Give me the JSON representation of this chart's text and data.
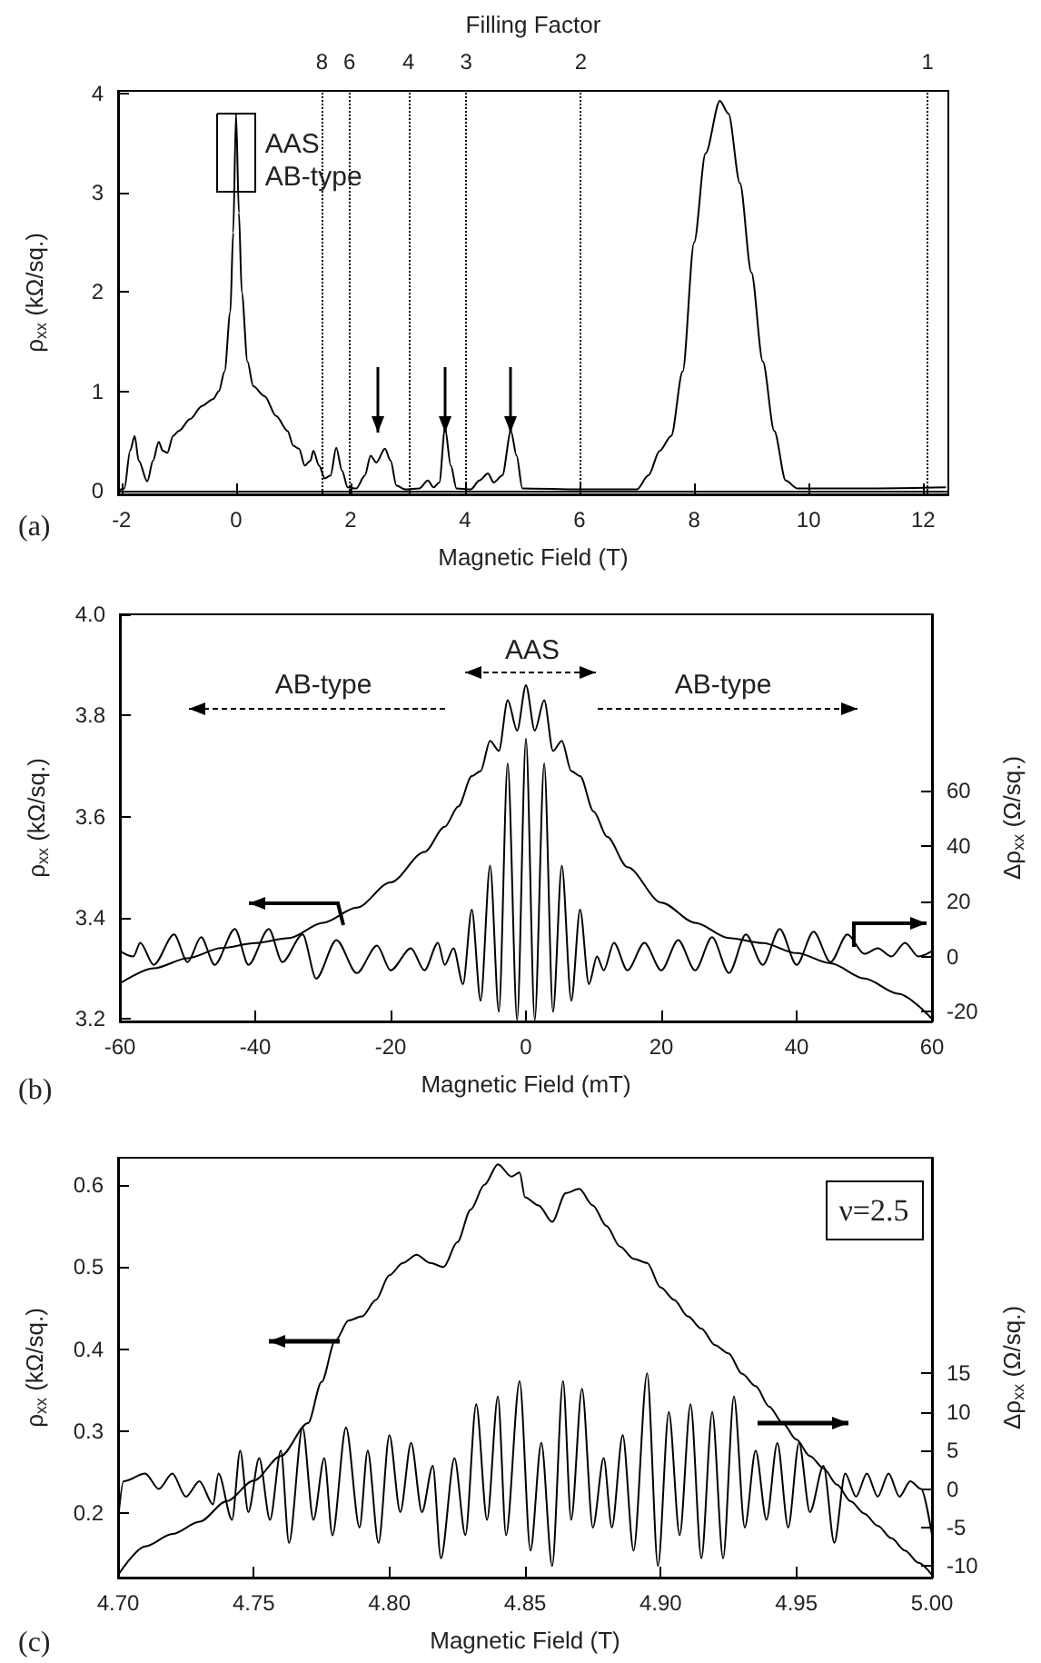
{
  "chart_data": [
    {
      "type": "line",
      "x2label": "Filling Factor",
      "xlabel": "Magnetic Field (T)",
      "ylabel": "ρ$_{xx}$ (kΩ/sq.)",
      "x": [
        -2.05,
        -1.95,
        -1.85,
        -1.77,
        -1.7,
        -1.55,
        -1.45,
        -1.35,
        -1.28,
        -1.2,
        -1.1,
        -1.0,
        -0.8,
        -0.6,
        -0.4,
        -0.3,
        -0.2,
        -0.1,
        -0.05,
        0,
        0.05,
        0.1,
        0.2,
        0.3,
        0.5,
        0.7,
        0.9,
        1.0,
        1.1,
        1.2,
        1.3,
        1.35,
        1.45,
        1.55,
        1.65,
        1.75,
        1.85,
        1.95,
        2.1,
        2.25,
        2.35,
        2.45,
        2.6,
        2.7,
        2.8,
        2.95,
        3.2,
        3.35,
        3.45,
        3.55,
        3.65,
        3.75,
        3.85,
        4.1,
        4.25,
        4.4,
        4.5,
        4.65,
        4.8,
        4.9,
        5.0,
        6.0,
        7.0,
        7.2,
        7.4,
        7.6,
        7.8,
        8.0,
        8.2,
        8.45,
        8.6,
        8.8,
        9.0,
        9.2,
        9.4,
        9.6,
        9.8,
        11.0,
        12.4
      ],
      "values": [
        0,
        0.02,
        0.4,
        0.55,
        0.3,
        0.09,
        0.3,
        0.49,
        0.4,
        0.38,
        0.55,
        0.6,
        0.72,
        0.85,
        0.92,
        1.0,
        1.2,
        1.8,
        2.6,
        3.8,
        2.8,
        2.0,
        1.3,
        1.05,
        0.95,
        0.75,
        0.6,
        0.45,
        0.42,
        0.25,
        0.3,
        0.4,
        0.25,
        0.12,
        0.15,
        0.43,
        0.2,
        0.03,
        0.02,
        0.15,
        0.35,
        0.28,
        0.42,
        0.3,
        0.05,
        0.01,
        0.02,
        0.1,
        0.03,
        0.08,
        0.63,
        0.25,
        0.02,
        0.01,
        0.1,
        0.17,
        0.08,
        0.15,
        0.6,
        0.35,
        0.02,
        0.01,
        0.01,
        0.15,
        0.4,
        0.55,
        1.2,
        2.5,
        3.4,
        3.93,
        3.8,
        3.1,
        2.2,
        1.3,
        0.6,
        0.1,
        0.02,
        0.02,
        0.03
      ],
      "color": "#000000",
      "xlim": [
        -2.06,
        12.44
      ],
      "ylim": [
        -0.04,
        4.03
      ],
      "xticks": [
        -2,
        0,
        2,
        4,
        6,
        8,
        10,
        12
      ],
      "yticks": [
        0,
        1,
        2,
        3,
        4
      ],
      "ref_lines": [
        {
          "axis": "x",
          "value": 1.5,
          "line_style": "dotted"
        },
        {
          "axis": "x",
          "value": 1.98,
          "line_style": "dotted"
        },
        {
          "axis": "x",
          "value": 3.01,
          "line_style": "dotted"
        },
        {
          "axis": "x",
          "value": 4.02,
          "line_style": "dotted"
        },
        {
          "axis": "x",
          "value": 6.02,
          "line_style": "dotted"
        },
        {
          "axis": "x",
          "value": 12.08,
          "line_style": "dotted"
        }
      ],
      "annotations": [
        {
          "text": "AAS",
          "x": 0,
          "y": 3.42
        },
        {
          "text": "AB-type",
          "x": 0,
          "y": 3.42
        },
        "(a)",
        {
          "text": "8",
          "x": 1.5,
          "y": 4.03
        },
        {
          "text": "6",
          "x": 1.98,
          "y": 4.03
        },
        {
          "text": "4",
          "x": 3.01,
          "y": 4.03
        },
        {
          "text": "3",
          "x": 4.02,
          "y": 4.03
        },
        {
          "text": "2",
          "x": 6.02,
          "y": 4.03
        },
        {
          "text": "1",
          "x": 12.08,
          "y": 4.03
        }
      ]
    },
    {
      "type": "line",
      "xlabel": "Magnetic Field (mT)",
      "ylabel": "ρ$_{xx}$ (kΩ/sq.)",
      "y2label": "Δρ$_{xx}$ (Ω/sq.)",
      "series": [
        {
          "color": "#000000",
          "x": [
            -60,
            -55,
            -50,
            -45,
            -40,
            -35,
            -30,
            -25,
            -20,
            -15,
            -12,
            -10,
            -8,
            -6.7,
            -5.3,
            -4,
            -2.7,
            -1.3,
            0,
            1.3,
            2.7,
            4,
            5.3,
            6.7,
            8,
            10,
            12,
            15,
            20,
            25,
            30,
            35,
            40,
            45,
            50,
            55,
            60
          ],
          "values": [
            3.27,
            3.3,
            3.32,
            3.34,
            3.35,
            3.36,
            3.39,
            3.42,
            3.47,
            3.53,
            3.58,
            3.62,
            3.68,
            3.69,
            3.75,
            3.73,
            3.83,
            3.77,
            3.86,
            3.77,
            3.83,
            3.73,
            3.75,
            3.69,
            3.68,
            3.61,
            3.56,
            3.5,
            3.43,
            3.39,
            3.36,
            3.35,
            3.33,
            3.31,
            3.28,
            3.25,
            3.2
          ]
        },
        {
          "color": "#000000",
          "axis": "y2",
          "x": [
            -60,
            -58,
            -57,
            -55,
            -52,
            -50,
            -48,
            -46,
            -43,
            -41,
            -38,
            -36,
            -33,
            -31,
            -28,
            -25,
            -22,
            -20,
            -17,
            -15,
            -13,
            -12,
            -10.7,
            -9.3,
            -8,
            -6.7,
            -5.3,
            -4,
            -2.7,
            -1.3,
            0,
            1.3,
            2.7,
            4,
            5.3,
            6.7,
            8,
            9.3,
            10.5,
            11.5,
            13,
            15,
            17.5,
            20,
            22.5,
            25,
            27.5,
            30,
            32.5,
            35,
            37.5,
            40,
            42.5,
            45,
            47.5,
            50,
            52,
            54,
            56,
            58,
            60
          ],
          "values": [
            2,
            0,
            5,
            -3,
            8,
            -2,
            7,
            -3,
            10,
            -3,
            10,
            -2,
            8,
            -8,
            6,
            -6,
            4,
            -5,
            3,
            -5,
            5,
            -3,
            3,
            -10,
            17,
            -16,
            33,
            -20,
            70,
            -23,
            79,
            -23,
            70,
            -20,
            33,
            -16,
            17,
            -10,
            0,
            -5,
            5,
            -5,
            5,
            -5,
            6,
            -5,
            7,
            -6,
            8,
            -3,
            10,
            -3,
            9,
            -2,
            8,
            1,
            3,
            0,
            5,
            0,
            2
          ]
        }
      ],
      "xlim": [
        -60,
        60
      ],
      "ylim": [
        3.195,
        4.0
      ],
      "y2lim": [
        -23.5,
        124
      ],
      "xticks": [
        -60,
        -40,
        -20,
        0,
        20,
        40,
        60
      ],
      "yticks": [
        3.2,
        3.4,
        3.6,
        3.8,
        {
          "value": 4,
          "label": "4.0"
        }
      ],
      "y2ticks": [
        -20,
        0,
        20,
        40,
        60
      ],
      "annotations": [
        "AB-type",
        "AAS",
        "AB-type",
        "(b)"
      ]
    },
    {
      "type": "line",
      "xlabel": "Magnetic Field (T)",
      "ylabel": "ρ$_{xx}$ (kΩ/sq.)",
      "y2label": "Δρ$_{xx}$ (Ω/sq.)",
      "series": [
        {
          "color": "#000000",
          "x": [
            4.7,
            4.71,
            4.72,
            4.73,
            4.74,
            4.75,
            4.76,
            4.77,
            4.775,
            4.78,
            4.785,
            4.79,
            4.795,
            4.8,
            4.805,
            4.81,
            4.815,
            4.82,
            4.825,
            4.83,
            4.835,
            4.84,
            4.845,
            4.848,
            4.85,
            4.855,
            4.86,
            4.865,
            4.87,
            4.875,
            4.88,
            4.885,
            4.89,
            4.895,
            4.9,
            4.905,
            4.91,
            4.915,
            4.92,
            4.925,
            4.93,
            4.935,
            4.94,
            4.945,
            4.95,
            4.955,
            4.96,
            4.965,
            4.97,
            4.975,
            4.98,
            4.985,
            4.99,
            4.995,
            5.0
          ],
          "values": [
            0.125,
            0.16,
            0.175,
            0.19,
            0.215,
            0.24,
            0.27,
            0.31,
            0.36,
            0.41,
            0.435,
            0.44,
            0.46,
            0.49,
            0.505,
            0.515,
            0.505,
            0.5,
            0.53,
            0.57,
            0.6,
            0.625,
            0.61,
            0.615,
            0.585,
            0.575,
            0.555,
            0.59,
            0.595,
            0.575,
            0.55,
            0.525,
            0.51,
            0.505,
            0.475,
            0.46,
            0.44,
            0.425,
            0.405,
            0.395,
            0.37,
            0.355,
            0.33,
            0.31,
            0.29,
            0.27,
            0.255,
            0.235,
            0.215,
            0.2,
            0.185,
            0.17,
            0.155,
            0.14,
            0.125
          ]
        },
        {
          "color": "#000000",
          "axis": "y2",
          "x": [
            4.7,
            4.702,
            4.71,
            4.715,
            4.72,
            4.725,
            4.73,
            4.735,
            4.737,
            4.742,
            4.745,
            4.748,
            4.752,
            4.756,
            4.76,
            4.763,
            4.768,
            4.772,
            4.776,
            4.779,
            4.784,
            4.789,
            4.792,
            4.796,
            4.8,
            4.804,
            4.808,
            4.812,
            4.816,
            4.819,
            4.824,
            4.828,
            4.832,
            4.836,
            4.84,
            4.843,
            4.848,
            4.852,
            4.856,
            4.86,
            4.864,
            4.867,
            4.871,
            4.875,
            4.879,
            4.882,
            4.886,
            4.89,
            4.895,
            4.899,
            4.903,
            4.907,
            4.911,
            4.915,
            4.919,
            4.923,
            4.927,
            4.931,
            4.935,
            4.939,
            4.943,
            4.947,
            4.951,
            4.955,
            4.96,
            4.964,
            4.968,
            4.972,
            4.976,
            4.98,
            4.984,
            4.988,
            4.992,
            4.996,
            5.0
          ],
          "values": [
            -4,
            1,
            2,
            0,
            2,
            -1,
            1,
            -2,
            2,
            -4,
            5,
            -3,
            4,
            -4,
            5,
            -7,
            8,
            -4,
            4,
            -6,
            8,
            -5,
            5,
            -7,
            7,
            -3,
            6,
            -3,
            3,
            -9,
            4,
            -6,
            11,
            -4,
            12,
            -6,
            14,
            -8,
            6,
            -10,
            14,
            -4,
            13,
            -5,
            4,
            -5,
            7,
            -8,
            15,
            -10,
            10,
            -6,
            11,
            -9,
            10,
            -9,
            12,
            -5,
            5,
            -4,
            6,
            -5,
            6,
            -3,
            3,
            -7,
            2,
            -1,
            2,
            -1,
            2,
            -1,
            1,
            0,
            -6
          ]
        }
      ],
      "xlim": [
        4.7,
        5.0
      ],
      "ylim": [
        0.122,
        0.633
      ],
      "y2lim": [
        -11.5,
        43
      ],
      "xticks": [
        {
          "value": 4.7,
          "label": "4.70"
        },
        4.75,
        {
          "value": 4.8,
          "label": "4.80"
        },
        4.85,
        {
          "value": 4.9,
          "label": "4.90"
        },
        4.95,
        {
          "value": 5.0,
          "label": "5.00"
        }
      ],
      "yticks": [
        0.2,
        0.3,
        0.4,
        0.5,
        0.6
      ],
      "y2ticks": [
        -10,
        -5,
        0,
        5,
        10,
        15
      ],
      "annotations": [
        "ν=2.5",
        "(c)"
      ]
    }
  ]
}
